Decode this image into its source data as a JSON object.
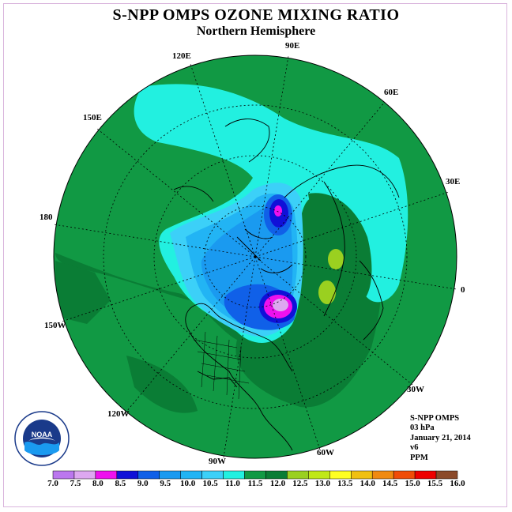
{
  "title": "S-NPP OMPS OZONE MIXING RATIO",
  "subtitle": "Northern Hemisphere",
  "longitude_labels": [
    {
      "text": "90E"
    },
    {
      "text": "60E"
    },
    {
      "text": "30E"
    },
    {
      "text": "0"
    },
    {
      "text": "30W"
    },
    {
      "text": "60W"
    },
    {
      "text": "90W"
    },
    {
      "text": "120W"
    },
    {
      "text": "150W"
    },
    {
      "text": "180"
    },
    {
      "text": "150E"
    },
    {
      "text": "120E"
    }
  ],
  "info": {
    "line1": "S-NPP OMPS",
    "line2": "03 hPa",
    "line3": "January 21, 2014",
    "line4": "v6",
    "line5": "PPM"
  },
  "logo_text": "NOAA",
  "colorbar": {
    "ticks": [
      "7.0",
      "7.5",
      "8.0",
      "8.5",
      "9.0",
      "9.5",
      "10.0",
      "10.5",
      "11.0",
      "11.5",
      "12.0",
      "12.5",
      "13.0",
      "13.5",
      "14.0",
      "14.5",
      "15.0",
      "15.5",
      "16.0"
    ],
    "colors": [
      "#bb77ee",
      "#dda8f0",
      "#ee11ee",
      "#1010d8",
      "#1060e8",
      "#1a9af0",
      "#22b4f4",
      "#3cd0f8",
      "#22f0e0",
      "#119944",
      "#0a7d35",
      "#9ad020",
      "#c0e818",
      "#ffff22",
      "#f0c010",
      "#f08a10",
      "#f04c08",
      "#ee0000",
      "#8b4a2a"
    ]
  },
  "map_colors": {
    "ocean_background": "#ffffff",
    "green_11_5": "#119944",
    "darkgreen_12_0": "#0a7d35",
    "cyan_11_0": "#22f0e0",
    "lightblue_10_5": "#3cd0f8",
    "blue_10_0": "#22b4f4",
    "blue_9_5": "#1a9af0",
    "blue_9_0": "#1060e8",
    "navy_8_5": "#1010d8",
    "magenta_8_0": "#ee11ee",
    "violet_7_5": "#dda8f0",
    "yellowgreen_12_5": "#9ad020"
  }
}
